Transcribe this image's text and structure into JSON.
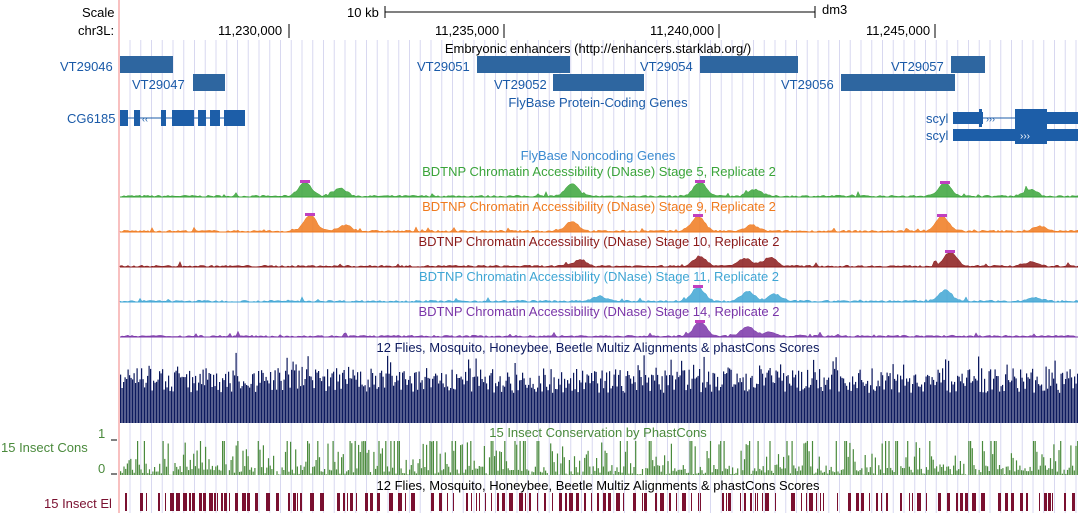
{
  "ruler": {
    "scale_label": "Scale",
    "chrom_label": "chr3L:",
    "scale_bar_text": "10 kb",
    "assembly": "dm3",
    "ticks": [
      "11,230,000",
      "11,235,000",
      "11,240,000",
      "11,245,000"
    ]
  },
  "tracks": {
    "enhancers": {
      "title": "Embryonic enhancers (http://enhancers.starklab.org/)",
      "items": [
        "VT29046",
        "VT29047",
        "VT29051",
        "VT29052",
        "VT29054",
        "VT29056",
        "VT29057"
      ]
    },
    "protein_genes": {
      "title": "FlyBase Protein-Coding Genes",
      "left_gene": "CG6185",
      "right_genes": [
        "scyl",
        "scyl"
      ]
    },
    "noncoding": {
      "title": "FlyBase Noncoding Genes"
    },
    "dnase": [
      {
        "title": "BDTNP Chromatin Accessibility (DNase) Stage 5, Replicate 2",
        "color": "#3aa43a"
      },
      {
        "title": "BDTNP Chromatin Accessibility (DNase) Stage 9, Replicate 2",
        "color": "#f07a1e"
      },
      {
        "title": "BDTNP Chromatin Accessibility (DNase) Stage 10, Replicate 2",
        "color": "#8b1a1a"
      },
      {
        "title": "BDTNP Chromatin Accessibility (DNase) Stage 11, Replicate 2",
        "color": "#3fa6d4"
      },
      {
        "title": "BDTNP Chromatin Accessibility (DNase) Stage 14, Replicate 2",
        "color": "#7a35a8"
      }
    ],
    "multiz": {
      "title": "12 Flies, Mosquito, Honeybee, Beetle Multiz Alignments & phastCons Scores",
      "color": "#0d1a5e"
    },
    "phastcons": {
      "side_label": "15 Insect Cons",
      "title": "15 Insect Conservation by PhastCons",
      "axis_max": "1",
      "axis_min": "0",
      "color": "#4a8a3c"
    },
    "elements": {
      "side_label": "15 Insect El",
      "title": "12 Flies, Mosquito, Honeybee, Beetle Multiz Alignments & phastCons Scores",
      "color": "#7a1030"
    }
  },
  "colors": {
    "gene_blue": "#1d5ea8",
    "enhancer_blue": "#2e66a0",
    "grid": "#d8d8f0",
    "left_border": "#f08080"
  }
}
